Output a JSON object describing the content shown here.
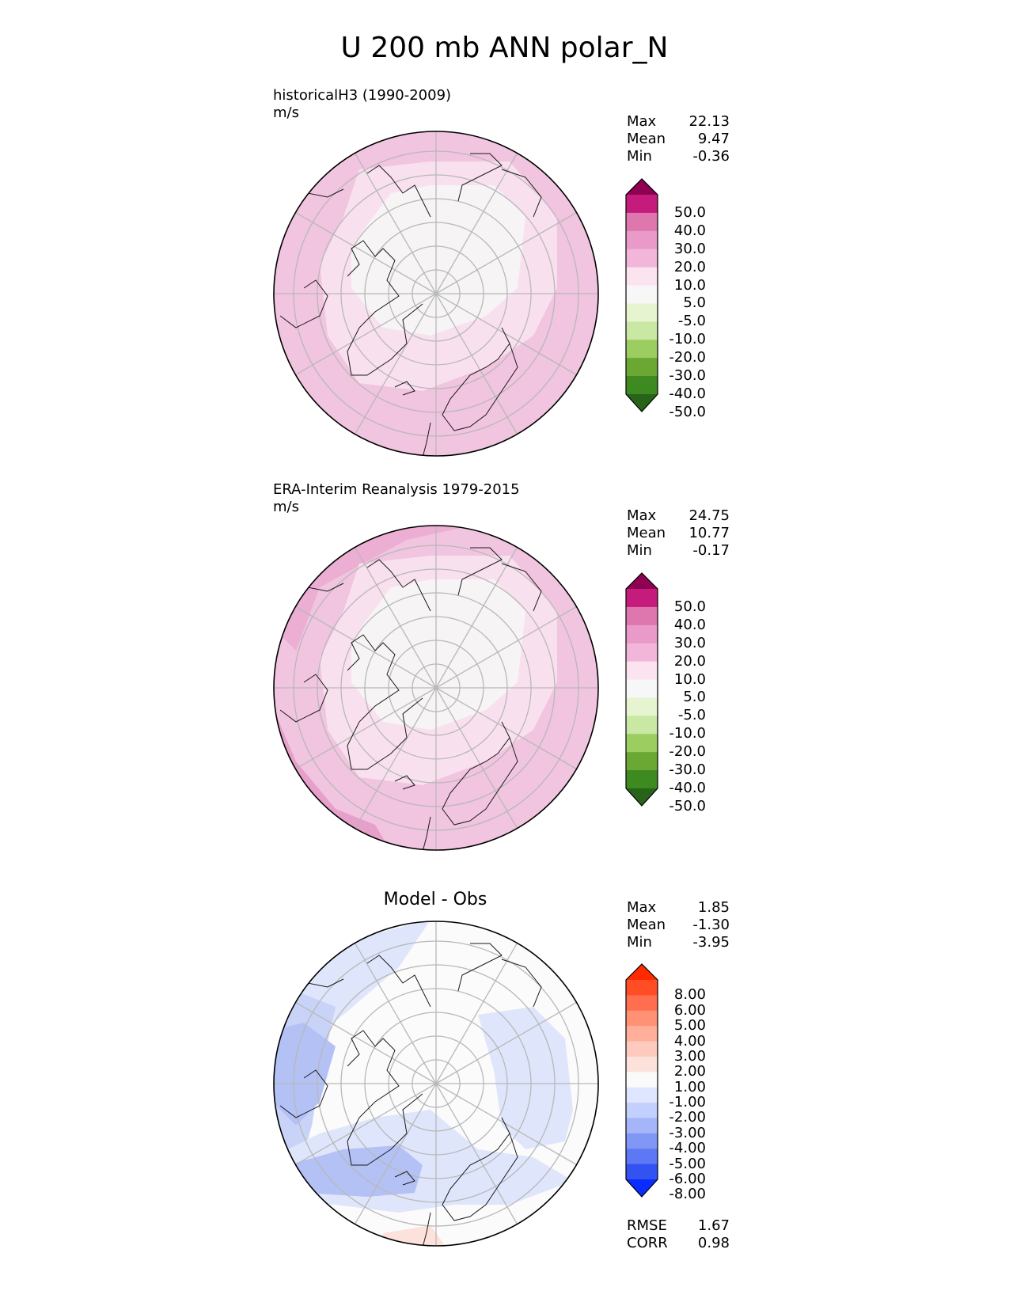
{
  "figure": {
    "title": "U 200 mb ANN polar_N"
  },
  "panels": [
    {
      "title_line1": "historicalH3 (1990-2009)",
      "title_line2": "m/s",
      "stats": {
        "max_label": "Max",
        "max": "22.13",
        "mean_label": "Mean",
        "mean": "9.47",
        "min_label": "Min",
        "min": "-0.36"
      },
      "colorbar": {
        "labels": [
          "50.0",
          "40.0",
          "30.0",
          "20.0",
          "10.0",
          "5.0",
          "-5.0",
          "-10.0",
          "-20.0",
          "-30.0",
          "-40.0",
          "-50.0"
        ],
        "colors": [
          "#8e0152",
          "#c51b7d",
          "#de77ae",
          "#e99ac8",
          "#f1b6da",
          "#fbe3f0",
          "#f7f7f7",
          "#e6f5d0",
          "#c8e8a4",
          "#9ccd60",
          "#6aa733",
          "#3d8a21",
          "#276419"
        ]
      }
    },
    {
      "title_line1": "ERA-Interim Reanalysis 1979-2015",
      "title_line2": "m/s",
      "stats": {
        "max_label": "Max",
        "max": "24.75",
        "mean_label": "Mean",
        "mean": "10.77",
        "min_label": "Min",
        "min": "-0.17"
      },
      "colorbar": {
        "labels": [
          "50.0",
          "40.0",
          "30.0",
          "20.0",
          "10.0",
          "5.0",
          "-5.0",
          "-10.0",
          "-20.0",
          "-30.0",
          "-40.0",
          "-50.0"
        ],
        "colors": [
          "#8e0152",
          "#c51b7d",
          "#de77ae",
          "#e99ac8",
          "#f1b6da",
          "#fbe3f0",
          "#f7f7f7",
          "#e6f5d0",
          "#c8e8a4",
          "#9ccd60",
          "#6aa733",
          "#3d8a21",
          "#276419"
        ]
      }
    },
    {
      "center_title": "Model - Obs",
      "stats": {
        "max_label": "Max",
        "max": "1.85",
        "mean_label": "Mean",
        "mean": "-1.30",
        "min_label": "Min",
        "min": "-3.95"
      },
      "colorbar": {
        "labels": [
          "8.00",
          "6.00",
          "5.00",
          "4.00",
          "3.00",
          "2.00",
          "1.00",
          "-1.00",
          "-2.00",
          "-3.00",
          "-4.00",
          "-5.00",
          "-6.00",
          "-8.00"
        ],
        "colors": [
          "#ff2a00",
          "#ff4d26",
          "#ff6e4f",
          "#ff9175",
          "#ffaf9a",
          "#ffcabe",
          "#fde2dc",
          "#fafafa",
          "#dfe6ff",
          "#c3cffd",
          "#a4b5fa",
          "#8097f6",
          "#5c78f4",
          "#3253f1",
          "#0a2cfd"
        ]
      },
      "metrics": {
        "rmse_label": "RMSE",
        "rmse": "1.67",
        "corr_label": "CORR",
        "corr": "0.98"
      }
    }
  ]
}
